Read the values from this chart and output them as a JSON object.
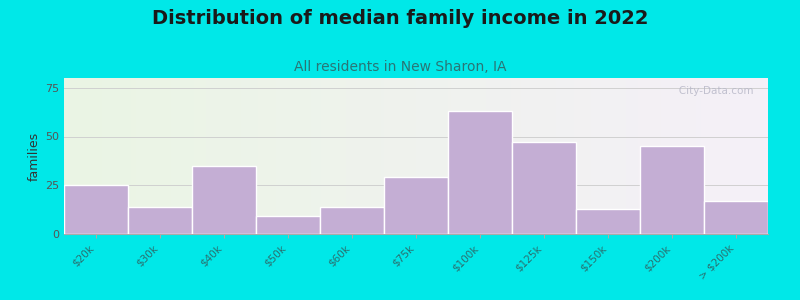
{
  "title": "Distribution of median family income in 2022",
  "subtitle": "All residents in New Sharon, IA",
  "ylabel": "families",
  "categories": [
    "$20k",
    "$30k",
    "$40k",
    "$50k",
    "$60k",
    "$75k",
    "$100k",
    "$125k",
    "$150k",
    "$200k",
    "> $200k"
  ],
  "values": [
    25,
    14,
    35,
    9,
    14,
    29,
    63,
    47,
    13,
    45,
    17
  ],
  "bar_color": "#c4aed4",
  "bar_edge_color": "#ffffff",
  "background_outer": "#00e8e8",
  "plot_bg_left": "#eaf5e4",
  "plot_bg_right": "#f5f0f8",
  "ylim": [
    0,
    80
  ],
  "yticks": [
    0,
    25,
    50,
    75
  ],
  "title_fontsize": 14,
  "subtitle_fontsize": 10,
  "ylabel_fontsize": 9,
  "tick_label_color": "#2a7070",
  "watermark": "   City-Data.com"
}
